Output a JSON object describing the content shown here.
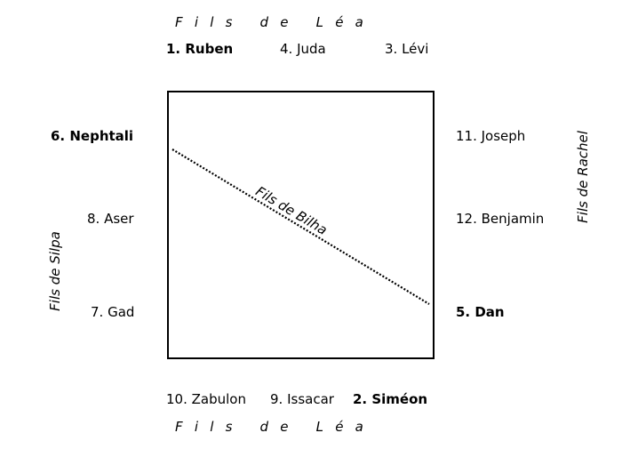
{
  "groups": {
    "top": "Fils de Léa",
    "bottom": "Fils de Léa",
    "left": "Fils de Silpa",
    "right": "Fils de Rachel",
    "diagonal": "Fils de Bilha"
  },
  "sons": {
    "top": [
      "1. Ruben",
      "4. Juda",
      "3. Lévi"
    ],
    "left": [
      "6. Nephtali",
      "8. Aser",
      "7. Gad"
    ],
    "right": [
      "11. Joseph",
      "12. Benjamin",
      "5. Dan"
    ],
    "bottom": [
      "10. Zabulon",
      "9. Issacar",
      "2. Siméon"
    ]
  }
}
